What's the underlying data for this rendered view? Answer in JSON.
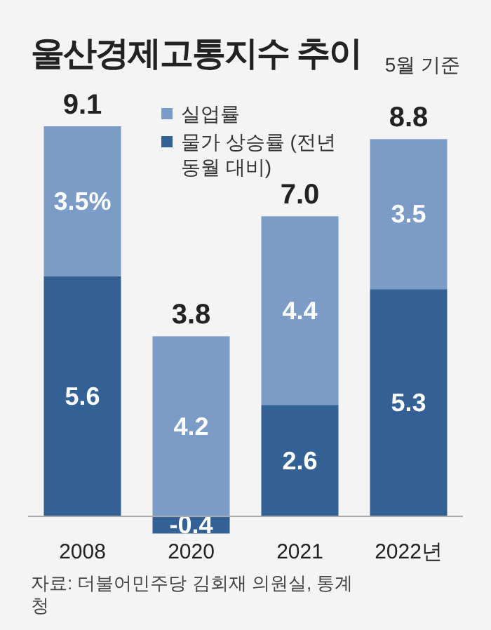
{
  "chart_data": {
    "type": "bar",
    "title": "울산경제고통지수 추이",
    "subtitle": "5월 기준",
    "categories": [
      "2008",
      "2020",
      "2021",
      "2022년"
    ],
    "stacked": true,
    "series": [
      {
        "name": "물가 상승률 (전년 동월 대비)",
        "color": "#336196",
        "values": [
          5.6,
          -0.4,
          2.6,
          5.3
        ],
        "value_labels": [
          "5.6",
          "-0.4",
          "2.6",
          "5.3"
        ]
      },
      {
        "name": "실업률",
        "color": "#7b9cc7",
        "values": [
          3.5,
          4.2,
          4.4,
          3.5
        ],
        "value_labels": [
          "3.5%",
          "4.2",
          "4.4",
          "3.5"
        ]
      }
    ],
    "totals": [
      "9.1",
      "3.8",
      "7.0",
      "8.8"
    ],
    "legend": "top",
    "annotations": [
      "자료: 더불어민주당 김회재 의원실, 통계청"
    ]
  }
}
